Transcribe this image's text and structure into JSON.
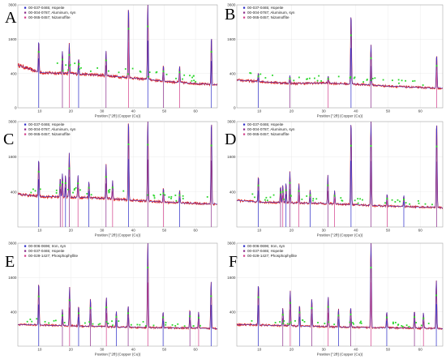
{
  "figure": {
    "colors": {
      "observed": "#d22222",
      "calculated": "#3a3ad6",
      "marker": "#2bd62b",
      "phase_1": "#2a2ac8",
      "phase_2": "#8a2b8a",
      "phase_3": "#d23c8a"
    }
  },
  "chart_data": [
    {
      "panel": "A",
      "type": "line",
      "title": "",
      "xlabel": "Position [°2θ] (Copper (Cu))",
      "ylabel": "",
      "xlim": [
        3,
        67
      ],
      "ylim": [
        0,
        3600
      ],
      "xticks": [
        10,
        20,
        30,
        40,
        50,
        60
      ],
      "yticks": [
        0,
        400,
        1600,
        3600
      ],
      "grid": true,
      "legend_position": "top-left",
      "legend": [
        "00-037-0465; Hopeite",
        "00-004-0787; Aluminum, syn",
        "00-065-0457; Nizamoffite"
      ],
      "series": [
        {
          "name": "observed",
          "peaks": [
            [
              9.7,
              1150
            ],
            [
              17.3,
              700
            ],
            [
              19.5,
              1000
            ],
            [
              22.5,
              450
            ],
            [
              31.3,
              750
            ],
            [
              38.5,
              3300
            ],
            [
              44.7,
              3600
            ],
            [
              49.7,
              380
            ],
            [
              54.9,
              380
            ],
            [
              65.1,
              1600
            ]
          ],
          "background": [
            [
              3,
              620
            ],
            [
              10,
              420
            ],
            [
              20,
              400
            ],
            [
              30,
              360
            ],
            [
              40,
              300
            ],
            [
              50,
              240
            ],
            [
              60,
              200
            ],
            [
              67,
              180
            ]
          ]
        }
      ]
    },
    {
      "panel": "B",
      "type": "line",
      "title": "",
      "xlabel": "Position [°2θ] (Copper (Cu))",
      "ylabel": "",
      "xlim": [
        3,
        67
      ],
      "ylim": [
        0,
        3600
      ],
      "xticks": [
        10,
        20,
        30,
        40,
        50,
        60
      ],
      "yticks": [
        0,
        400,
        1600,
        3600
      ],
      "grid": true,
      "legend_position": "top-left",
      "legend": [
        "00-037-0465; Hopeite",
        "00-004-0787; Aluminum, syn",
        "00-065-0457; Nizamoffite"
      ],
      "series": [
        {
          "name": "observed",
          "peaks": [
            [
              9.7,
              180
            ],
            [
              19.5,
              160
            ],
            [
              31.4,
              140
            ],
            [
              38.5,
              2900
            ],
            [
              44.7,
              1200
            ],
            [
              65.1,
              850
            ]
          ],
          "background": [
            [
              3,
              260
            ],
            [
              20,
              200
            ],
            [
              30,
              210
            ],
            [
              40,
              190
            ],
            [
              50,
              160
            ],
            [
              60,
              140
            ],
            [
              67,
              130
            ]
          ]
        }
      ]
    },
    {
      "panel": "C",
      "type": "line",
      "title": "",
      "xlabel": "Position [°2θ] (Copper (Cu))",
      "ylabel": "",
      "xlim": [
        3,
        67
      ],
      "ylim": [
        0,
        3600
      ],
      "xticks": [
        10,
        20,
        30,
        40,
        50,
        60
      ],
      "yticks": [
        400,
        1600,
        3600
      ],
      "grid": true,
      "legend_position": "top-left",
      "legend": [
        "00-037-0465; Hopeite",
        "00-004-0787; Aluminum, syn",
        "00-065-0457; Nizamoffite"
      ],
      "series": [
        {
          "name": "observed",
          "peaks": [
            [
              9.7,
              1250
            ],
            [
              16.6,
              500
            ],
            [
              17.3,
              650
            ],
            [
              18.3,
              600
            ],
            [
              19.5,
              1500
            ],
            [
              22.3,
              600
            ],
            [
              25.8,
              400
            ],
            [
              31.3,
              1000
            ],
            [
              33.4,
              450
            ],
            [
              38.5,
              3600
            ],
            [
              44.7,
              3600
            ],
            [
              49.7,
              300
            ],
            [
              54.9,
              250
            ],
            [
              65.1,
              3600
            ]
          ],
          "background": [
            [
              3,
              350
            ],
            [
              10,
              300
            ],
            [
              20,
              290
            ],
            [
              30,
              270
            ],
            [
              40,
              230
            ],
            [
              50,
              200
            ],
            [
              60,
              180
            ],
            [
              67,
              170
            ]
          ]
        }
      ]
    },
    {
      "panel": "D",
      "type": "line",
      "title": "",
      "xlabel": "Position [°2θ] (Copper (Cu))",
      "ylabel": "",
      "xlim": [
        3,
        67
      ],
      "ylim": [
        0,
        3600
      ],
      "xticks": [
        10,
        20,
        30,
        40,
        50,
        60
      ],
      "yticks": [
        400,
        1600,
        3600
      ],
      "grid": true,
      "legend_position": "top-left",
      "legend": [
        "00-037-0465; Hopeite",
        "00-004-0787; Aluminum, syn",
        "00-065-0457; Nizamoffite"
      ],
      "series": [
        {
          "name": "observed",
          "peaks": [
            [
              9.7,
              650
            ],
            [
              16.6,
              350
            ],
            [
              17.3,
              380
            ],
            [
              18.3,
              450
            ],
            [
              19.5,
              800
            ],
            [
              22.3,
              420
            ],
            [
              25.8,
              260
            ],
            [
              31.3,
              700
            ],
            [
              33.4,
              260
            ],
            [
              38.5,
              3600
            ],
            [
              44.7,
              3600
            ],
            [
              49.7,
              220
            ],
            [
              54.9,
              200
            ],
            [
              65.1,
              3600
            ]
          ],
          "background": [
            [
              3,
              230
            ],
            [
              10,
              200
            ],
            [
              20,
              190
            ],
            [
              30,
              180
            ],
            [
              40,
              160
            ],
            [
              50,
              140
            ],
            [
              60,
              130
            ],
            [
              67,
              120
            ]
          ]
        }
      ]
    },
    {
      "panel": "E",
      "type": "line",
      "title": "",
      "xlabel": "Position [°2θ] (Copper (Cu))",
      "ylabel": "",
      "xlim": [
        3,
        67
      ],
      "ylim": [
        0,
        3600
      ],
      "xticks": [
        10,
        20,
        30,
        40,
        50,
        60
      ],
      "yticks": [
        400,
        1600,
        3600
      ],
      "grid": true,
      "legend_position": "top-left",
      "legend": [
        "00-006-0696; Iron, syn",
        "00-037-0465; Hopeite",
        "00-029-1427; Phosphophyllite"
      ],
      "series": [
        {
          "name": "observed",
          "peaks": [
            [
              9.7,
              1250
            ],
            [
              17.3,
              320
            ],
            [
              19.6,
              1050
            ],
            [
              22.5,
              420
            ],
            [
              26.3,
              650
            ],
            [
              31.4,
              700
            ],
            [
              34.6,
              300
            ],
            [
              38.4,
              450
            ],
            [
              44.7,
              3600
            ],
            [
              49.6,
              300
            ],
            [
              58.2,
              350
            ],
            [
              61.0,
              300
            ],
            [
              65.0,
              1350
            ]
          ],
          "background": [
            [
              3,
              160
            ],
            [
              20,
              140
            ],
            [
              40,
              120
            ],
            [
              60,
              110
            ],
            [
              67,
              105
            ]
          ]
        }
      ]
    },
    {
      "panel": "F",
      "type": "line",
      "title": "",
      "xlabel": "Position [°2θ] (Copper (Cu))",
      "ylabel": "",
      "xlim": [
        3,
        67
      ],
      "ylim": [
        0,
        3600
      ],
      "xticks": [
        10,
        20,
        30,
        40,
        50,
        60
      ],
      "yticks": [
        400,
        1600,
        3600
      ],
      "grid": true,
      "legend_position": "top-left",
      "legend": [
        "00-006-0696; Iron, syn",
        "00-037-0465; Hopeite",
        "00-029-1427; Phosphophyllite"
      ],
      "series": [
        {
          "name": "observed",
          "peaks": [
            [
              9.7,
              1200
            ],
            [
              17.3,
              350
            ],
            [
              19.6,
              900
            ],
            [
              22.5,
              450
            ],
            [
              26.3,
              650
            ],
            [
              31.4,
              720
            ],
            [
              34.6,
              350
            ],
            [
              38.4,
              400
            ],
            [
              44.7,
              3600
            ],
            [
              49.6,
              300
            ],
            [
              58.2,
              320
            ],
            [
              61.0,
              280
            ],
            [
              65.0,
              1400
            ]
          ],
          "background": [
            [
              3,
              160
            ],
            [
              20,
              140
            ],
            [
              40,
              120
            ],
            [
              60,
              110
            ],
            [
              67,
              105
            ]
          ]
        }
      ]
    }
  ]
}
